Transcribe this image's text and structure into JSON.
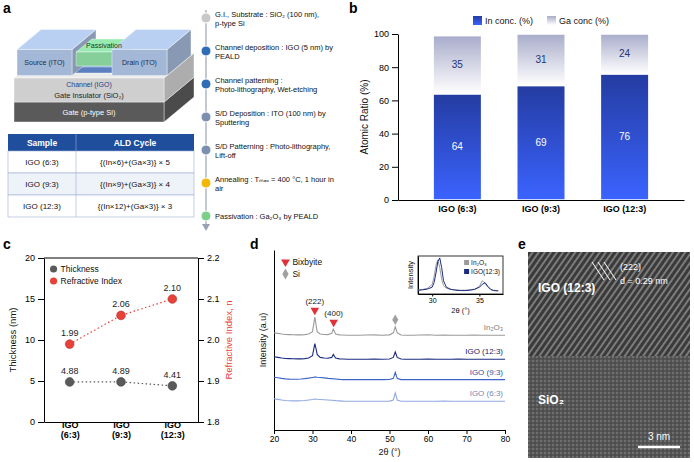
{
  "panel_labels": [
    "a",
    "b",
    "c",
    "d",
    "e"
  ],
  "panel_a": {
    "schematic": {
      "source": "Source (ITO)",
      "passivation": "Passivation",
      "drain": "Drain (ITO)",
      "channel": "Channel (IGO)",
      "gate_insulator": "Gate Insulator (SiO₂)",
      "gate": "Gate (p-type Si)"
    },
    "table": {
      "header": [
        "Sample",
        "ALD Cycle"
      ],
      "rows": [
        [
          "IGO (6:3)",
          "{(In×6)+(Ga×3)} × 5"
        ],
        [
          "IGO (9:3)",
          "{(In×9)+(Ga×3)} × 4"
        ],
        [
          "IGO (12:3)",
          "{(In×12)+(Ga×3)} × 3"
        ]
      ]
    },
    "process_steps": [
      {
        "text": "G.I., Substrate : SiO₂ (100 nm), p-type Si",
        "color": "#c8c8c8"
      },
      {
        "text": "Channel deposition : IGO (5 nm) by PEALD",
        "color": "#2f6db5"
      },
      {
        "text": "Channel patterning : Photo-lithography, Wet-etching",
        "color": "#2f6db5"
      },
      {
        "text": "S/D Deposition : ITO (100 nm) by Sputtering",
        "color": "#7d8fae"
      },
      {
        "text": "S/D Patterning : Photo-lithography, Lift-off",
        "color": "#7d8fae"
      },
      {
        "text": "Annealing : Tₘₐₓ = 400 °C, 1 hour in air",
        "color": "#f2b705"
      },
      {
        "text": "Passivation : Ga₂O₃ by PEALD",
        "color": "#7ccf8a"
      }
    ]
  },
  "chart_data": [
    {
      "type": "bar",
      "stacked": true,
      "data_labels": true,
      "legend": "top",
      "categories": [
        "IGO (6:3)",
        "IGO (9:3)",
        "IGO (12:3)"
      ],
      "y_label": "Atomic Ratio (%)",
      "ylim": [
        0,
        100
      ],
      "yticks": [
        0,
        20,
        40,
        60,
        80,
        100
      ],
      "series": [
        {
          "name": "In conc. (%)",
          "color": "#2b48c0",
          "values": [
            64,
            69,
            76
          ]
        },
        {
          "name": "Ga conc (%)",
          "color": "#c9cef2",
          "values": [
            35,
            31,
            24
          ]
        }
      ]
    },
    {
      "type": "scatter",
      "data_labels": true,
      "legend": "top-left",
      "categories": [
        "IGO (6:3)",
        "IGO (9:3)",
        "IGO (12:3)"
      ],
      "y_label": "Thickness (nm)",
      "ylim": [
        0,
        20
      ],
      "yticks": [
        0,
        5,
        10,
        15,
        20
      ],
      "y2_label": "Refractive Index, n",
      "y2lim": [
        1.8,
        2.2
      ],
      "y2ticks": [
        1.8,
        1.9,
        {
          "value": 2,
          "label": "2.0"
        },
        2.1,
        2.2
      ],
      "series": [
        {
          "name": "Thickness",
          "color": "#5a5a5a",
          "marker": "circle",
          "line_style": "dotted",
          "values": [
            4.88,
            4.89,
            4.41
          ]
        },
        {
          "name": "Refractive Index",
          "color": "#e8413a",
          "marker": "circle",
          "line_style": "dotted",
          "axis": "y2",
          "values": [
            1.99,
            2.06,
            2.1
          ],
          "value_labels": [
            "1.99",
            "2.06",
            "2.10"
          ]
        }
      ]
    },
    {
      "type": "line",
      "legend": "top-left",
      "tick_labels": "x",
      "x_label": "2θ (°)",
      "y_label": "Intensity (a.u)",
      "xlim": [
        20,
        80
      ],
      "xticks": [
        20,
        30,
        40,
        50,
        60,
        70,
        80
      ],
      "ylim": [
        0,
        150
      ],
      "yticks": [],
      "x": [
        20,
        21,
        22,
        23,
        24,
        25,
        26,
        27,
        28,
        29,
        30,
        30.3,
        30.6,
        30.9,
        31.2,
        32,
        33,
        34,
        35,
        35.4,
        35.7,
        36,
        37,
        38,
        39,
        40,
        42,
        44,
        46,
        48,
        50,
        51,
        51.5,
        52,
        53,
        54,
        56,
        58,
        60,
        62,
        64,
        66,
        68,
        70,
        72,
        74,
        76,
        78,
        80
      ],
      "series": [
        {
          "name": "In₂O₃",
          "color": "#9b9b9b",
          "values": [
            81,
            80.5,
            80,
            79.6,
            79.5,
            79.4,
            79.3,
            79.3,
            79.5,
            80,
            82,
            88,
            94,
            88,
            82,
            80,
            79.6,
            79.5,
            80.5,
            84,
            82,
            80,
            79.3,
            79.2,
            79,
            79,
            79,
            79.2,
            79.3,
            79,
            79.3,
            81,
            86,
            81,
            79.2,
            79,
            79,
            79.2,
            79.4,
            79,
            79.1,
            79,
            79,
            79,
            79.2,
            79,
            79,
            79,
            79
          ]
        },
        {
          "name": "IGO (12:3)",
          "color": "#1a2c80",
          "values": [
            61,
            60.5,
            60,
            59.6,
            59.5,
            59.4,
            59.3,
            59.3,
            59.5,
            60,
            62,
            67,
            72,
            68,
            63,
            60.5,
            60,
            59.8,
            60.5,
            63,
            61.5,
            60,
            59.3,
            59.2,
            59,
            59,
            59,
            59,
            59.2,
            59,
            59.2,
            60.5,
            65,
            60.5,
            59.2,
            59,
            59,
            59,
            59.2,
            59,
            59,
            59,
            59.1,
            59,
            59,
            59,
            59,
            59,
            59
          ]
        },
        {
          "name": "IGO (9:3)",
          "color": "#3d63c9",
          "values": [
            44,
            43.5,
            43,
            42.6,
            42.4,
            42.3,
            42.3,
            42.5,
            42.8,
            43.2,
            43.8,
            44,
            44.2,
            44.1,
            44,
            43.8,
            43.4,
            43,
            42.8,
            42.7,
            42.6,
            42.5,
            42.2,
            42,
            42,
            42,
            42,
            42,
            42,
            42,
            42.1,
            43,
            48,
            43,
            42,
            42,
            42,
            42,
            42.1,
            42,
            42,
            42,
            42,
            42,
            42,
            42,
            42,
            42,
            42
          ]
        },
        {
          "name": "IGO (6:3)",
          "color": "#93a9e3",
          "values": [
            26,
            25.5,
            25,
            24.6,
            24.4,
            24.3,
            24.3,
            24.4,
            24.6,
            25,
            25.4,
            25.6,
            25.7,
            25.7,
            25.6,
            25.4,
            25.2,
            25,
            24.8,
            24.7,
            24.6,
            24.5,
            24.3,
            24.1,
            24,
            24,
            24,
            24,
            24,
            24,
            24.1,
            25,
            31,
            25,
            24,
            24,
            24,
            24,
            24,
            24,
            24.1,
            24,
            24,
            24,
            24,
            24,
            24,
            24,
            24
          ]
        }
      ],
      "peak_markers": [
        {
          "name": "Bixbyite",
          "color": "#e0303a",
          "marker": "triangle-down",
          "x": [
            30.6,
            35.5
          ],
          "labels": [
            "(222)",
            "(400)"
          ]
        },
        {
          "name": "Si",
          "color": "#a0a0a0",
          "marker": "diamond",
          "x": [
            51.5
          ]
        }
      ]
    },
    {
      "type": "line",
      "legend": "top-right",
      "tick_labels": "x",
      "x_label": "2θ (°)",
      "y_label": "Intensity",
      "xlim": [
        28.5,
        37.5
      ],
      "xticks": [
        30,
        35
      ],
      "ylim": [
        0,
        100
      ],
      "yticks": [],
      "x": [
        28.5,
        29,
        29.5,
        30,
        30.2,
        30.4,
        30.6,
        30.8,
        31,
        31.2,
        31.5,
        32,
        32.5,
        33,
        33.5,
        34,
        34.5,
        35,
        35.3,
        35.6,
        35.9,
        36.2,
        36.5,
        37
      ],
      "series": [
        {
          "name": "In₂O₃",
          "color": "#9b9b9b",
          "values": [
            10,
            12,
            15,
            25,
            45,
            75,
            90,
            70,
            40,
            22,
            15,
            12,
            11,
            10,
            10,
            11,
            13,
            20,
            35,
            28,
            18,
            12,
            10,
            9
          ]
        },
        {
          "name": "IGO(12:3)",
          "color": "#1a2c80",
          "values": [
            10,
            11,
            13,
            18,
            30,
            55,
            85,
            95,
            70,
            35,
            18,
            12,
            10,
            9,
            9,
            10,
            12,
            18,
            25,
            30,
            20,
            12,
            9,
            8
          ]
        }
      ]
    }
  ],
  "panel_e": {
    "film": "IGO (12:3)",
    "substrate": "SiO₂",
    "plane": "(222)",
    "spacing": "d = 0.29 nm",
    "scale_bar": "3 nm"
  }
}
